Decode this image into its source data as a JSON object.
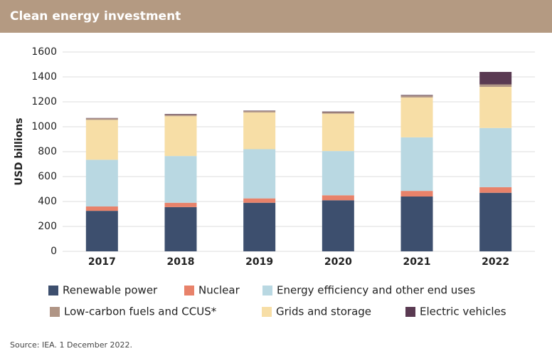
{
  "chart_data": {
    "type": "stacked-bar",
    "title": "Clean energy investment",
    "y_label": "USD billions",
    "source": "Source: IEA. 1 December 2022.",
    "categories": [
      "2017",
      "2018",
      "2019",
      "2020",
      "2021",
      "2022"
    ],
    "series": [
      {
        "name": "Renewable power",
        "color": "#3d4f6e",
        "values": [
          325,
          355,
          390,
          410,
          440,
          470
        ]
      },
      {
        "name": "Nuclear",
        "color": "#e8826a",
        "values": [
          35,
          35,
          35,
          40,
          45,
          45
        ]
      },
      {
        "name": "Energy efficiency and other end uses",
        "color": "#b9d8e2",
        "values": [
          375,
          375,
          395,
          355,
          430,
          475
        ]
      },
      {
        "name": "Low-carbon fuels and CCUS*",
        "color": "#b09585",
        "values": [
          12,
          12,
          12,
          12,
          15,
          20
        ]
      },
      {
        "name": "Grids and storage",
        "color": "#f7dea6",
        "values": [
          320,
          320,
          295,
          300,
          320,
          330
        ]
      },
      {
        "name": "Electric vehicles",
        "color": "#5a3a52",
        "values": [
          3,
          5,
          3,
          5,
          5,
          100
        ]
      }
    ],
    "stack_order": [
      0,
      1,
      2,
      4,
      3,
      5
    ],
    "ylim": [
      0,
      1600
    ],
    "yticks": [
      0,
      200,
      400,
      600,
      800,
      1000,
      1200,
      1400,
      1600
    ],
    "grid": true
  }
}
